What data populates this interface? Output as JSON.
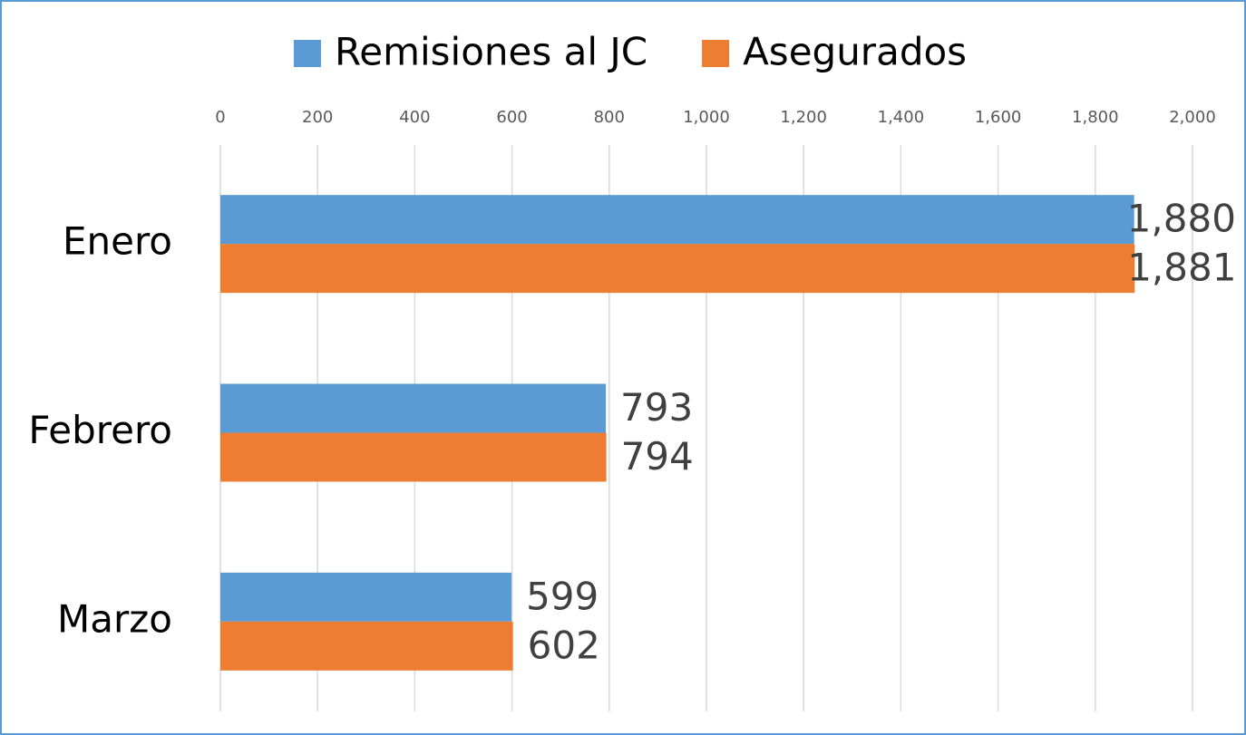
{
  "chart_data": {
    "type": "barh",
    "categories": [
      "Enero",
      "Febrero",
      "Marzo"
    ],
    "series": [
      {
        "name": "Remisiones al JC",
        "color": "#5b9bd5",
        "values": [
          1880,
          793,
          599
        ],
        "value_labels": [
          "1,880",
          "793",
          "599"
        ]
      },
      {
        "name": "Asegurados",
        "color": "#ed7d31",
        "values": [
          1881,
          794,
          602
        ],
        "value_labels": [
          "1,881",
          "794",
          "602"
        ]
      }
    ],
    "xlim": [
      0,
      2000
    ],
    "xticks": [
      0,
      200,
      400,
      600,
      800,
      {
        "value": 1000,
        "label": "1,000"
      },
      {
        "value": 1200,
        "label": "1,200"
      },
      {
        "value": 1400,
        "label": "1,400"
      },
      {
        "value": 1600,
        "label": "1,600"
      },
      {
        "value": 1800,
        "label": "1,800"
      },
      {
        "value": 2000,
        "label": "2,000"
      }
    ],
    "grid": true,
    "legend": "top"
  }
}
